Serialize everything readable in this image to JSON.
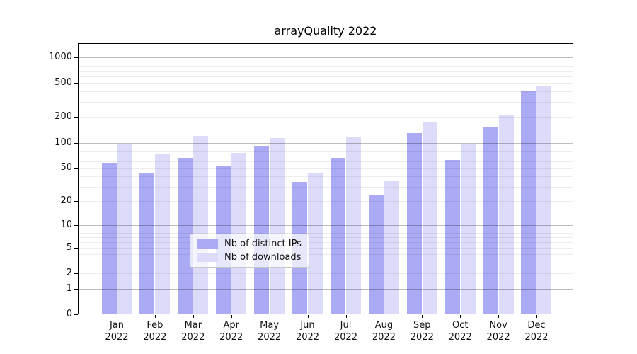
{
  "chart_data": {
    "type": "bar",
    "title": "arrayQuality 2022",
    "categories": [
      "Jan",
      "Feb",
      "Mar",
      "Apr",
      "May",
      "Jun",
      "Jul",
      "Aug",
      "Sep",
      "Oct",
      "Nov",
      "Dec"
    ],
    "x_tick_year": "2022",
    "series": [
      {
        "name": "Nb of distinct IPs",
        "color": "#aaaaf5",
        "values": [
          58,
          44,
          66,
          53,
          91,
          34,
          66,
          24,
          130,
          63,
          155,
          400
        ]
      },
      {
        "name": "Nb of downloads",
        "color": "#dcdcfa",
        "values": [
          98,
          74,
          120,
          76,
          113,
          43,
          119,
          35,
          176,
          97,
          215,
          460
        ]
      }
    ],
    "yscale": "log1p",
    "ylim": [
      0,
      1460
    ],
    "y_ticks": [
      0,
      1,
      2,
      5,
      10,
      20,
      50,
      100,
      200,
      500,
      1000
    ],
    "grid": "horizontal: gray lines at powers of 10, faint minors at 2-9 per decade, drawn over bars",
    "legend_position": "inside lower-center"
  },
  "colors": {
    "background": "#ffffff",
    "spine": "#000000",
    "grid_major": "rgba(0,0,0,0.26)",
    "grid_minor": "rgba(0,0,0,0.07)"
  }
}
